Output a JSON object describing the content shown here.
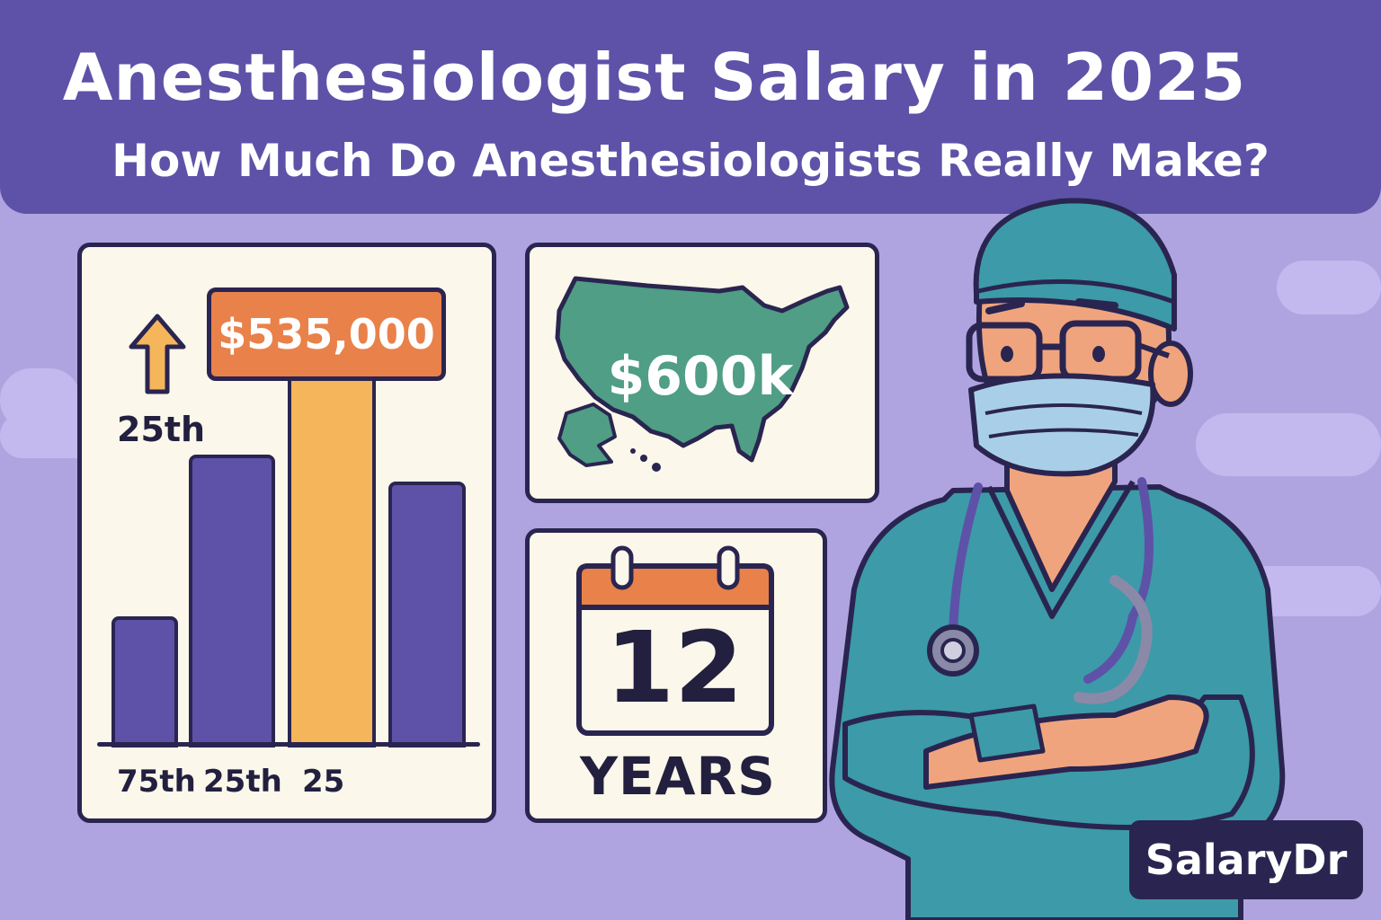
{
  "header": {
    "title": "Anesthesiologist Salary in 2025",
    "subtitle": "How Much Do Anesthesiologists Really Make?"
  },
  "bar_card": {
    "highlight_value": "$535,000",
    "arrow_label": "25th",
    "x_labels": [
      "75th",
      "25th",
      "25"
    ]
  },
  "map_card": {
    "value": "$600k",
    "icon": "usa-map-icon"
  },
  "calendar_card": {
    "number": "12",
    "unit": "YEARS",
    "icon": "calendar-icon"
  },
  "brand": {
    "name": "SalaryDr"
  },
  "colors": {
    "banner": "#5d52a8",
    "background": "#b0a4e0",
    "bar_primary": "#5d52a8",
    "bar_highlight": "#f5b55a",
    "accent_orange": "#e9814a",
    "map_green": "#4f9e85",
    "scrubs_teal": "#3d9aa8"
  }
}
